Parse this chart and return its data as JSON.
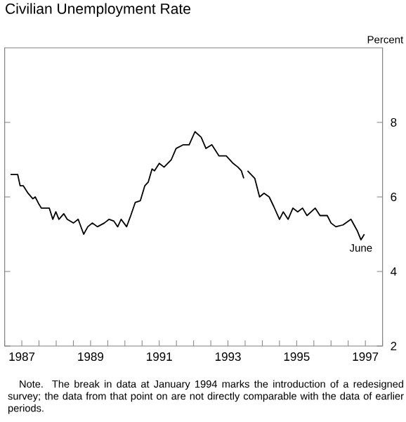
{
  "chart_data": {
    "type": "line",
    "title": "Civilian Unemployment Rate",
    "ylabel": "Percent",
    "xlim": [
      1987,
      1998
    ],
    "ylim": [
      2,
      10
    ],
    "xticks": [
      {
        "value": 1987,
        "label": null
      },
      {
        "value": 1987.5,
        "label": "1987"
      },
      {
        "value": 1988,
        "label": null
      },
      {
        "value": 1988.5,
        "label": null
      },
      {
        "value": 1989,
        "label": null
      },
      {
        "value": 1989.5,
        "label": "1989"
      },
      {
        "value": 1990,
        "label": null
      },
      {
        "value": 1990.5,
        "label": null
      },
      {
        "value": 1991,
        "label": null
      },
      {
        "value": 1991.5,
        "label": "1991"
      },
      {
        "value": 1992,
        "label": null
      },
      {
        "value": 1992.5,
        "label": null
      },
      {
        "value": 1993,
        "label": null
      },
      {
        "value": 1993.5,
        "label": "1993"
      },
      {
        "value": 1994,
        "label": null
      },
      {
        "value": 1994.5,
        "label": null
      },
      {
        "value": 1995,
        "label": null
      },
      {
        "value": 1995.5,
        "label": "1995"
      },
      {
        "value": 1996,
        "label": null
      },
      {
        "value": 1996.5,
        "label": null
      },
      {
        "value": 1997,
        "label": null
      },
      {
        "value": 1997.5,
        "label": "1997"
      },
      {
        "value": 1998,
        "label": null
      }
    ],
    "yticks": [
      2,
      4,
      6,
      8
    ],
    "series": [
      {
        "color": "#000000",
        "x": [
          1987.17,
          1987.38,
          1987.45,
          1987.54,
          1987.68,
          1987.82,
          1987.89,
          1988.0,
          1988.07,
          1988.3,
          1988.4,
          1988.49,
          1988.58,
          1988.72,
          1988.82,
          1989.0,
          1989.14,
          1989.3,
          1989.42,
          1989.55,
          1989.7,
          1989.9,
          1990.04,
          1990.18,
          1990.29,
          1990.39,
          1990.55,
          1990.67,
          1990.8,
          1990.95,
          1991.08,
          1991.18,
          1991.29,
          1991.36,
          1991.5,
          1991.64,
          1991.85,
          1991.99,
          1992.2,
          1992.37,
          1992.54,
          1992.72,
          1992.86,
          1993.03,
          1993.24,
          1993.45,
          1993.65,
          1993.79,
          1993.89,
          1993.96
        ],
        "values": [
          6.6,
          6.6,
          6.3,
          6.3,
          6.1,
          5.95,
          6.0,
          5.8,
          5.7,
          5.7,
          5.4,
          5.6,
          5.4,
          5.55,
          5.4,
          5.3,
          5.4,
          5.0,
          5.2,
          5.3,
          5.2,
          5.3,
          5.4,
          5.35,
          5.2,
          5.4,
          5.2,
          5.5,
          5.85,
          5.9,
          6.3,
          6.4,
          6.75,
          6.7,
          6.9,
          6.8,
          7.0,
          7.3,
          7.4,
          7.4,
          7.75,
          7.6,
          7.3,
          7.4,
          7.1,
          7.1,
          6.9,
          6.8,
          6.7,
          6.5
        ]
      },
      {
        "color": "#000000",
        "x": [
          1994.07,
          1994.28,
          1994.42,
          1994.55,
          1994.7,
          1994.83,
          1995.0,
          1995.11,
          1995.25,
          1995.39,
          1995.53,
          1995.67,
          1995.8,
          1996.04,
          1996.18,
          1996.39,
          1996.5,
          1996.64,
          1996.85,
          1997.08,
          1997.26,
          1997.37,
          1997.47
        ],
        "values": [
          6.7,
          6.5,
          6.0,
          6.1,
          6.0,
          5.75,
          5.4,
          5.6,
          5.4,
          5.7,
          5.6,
          5.7,
          5.5,
          5.7,
          5.5,
          5.5,
          5.3,
          5.2,
          5.25,
          5.4,
          5.1,
          4.85,
          5.0
        ]
      }
    ],
    "annotations": [
      {
        "text": "June",
        "x": 1997.37,
        "y": 4.85
      },
      "Note. The break in data at January 1994 marks the introduction of a redesigned survey; the data from that point on are not directly comparable with the data of earlier periods."
    ]
  }
}
